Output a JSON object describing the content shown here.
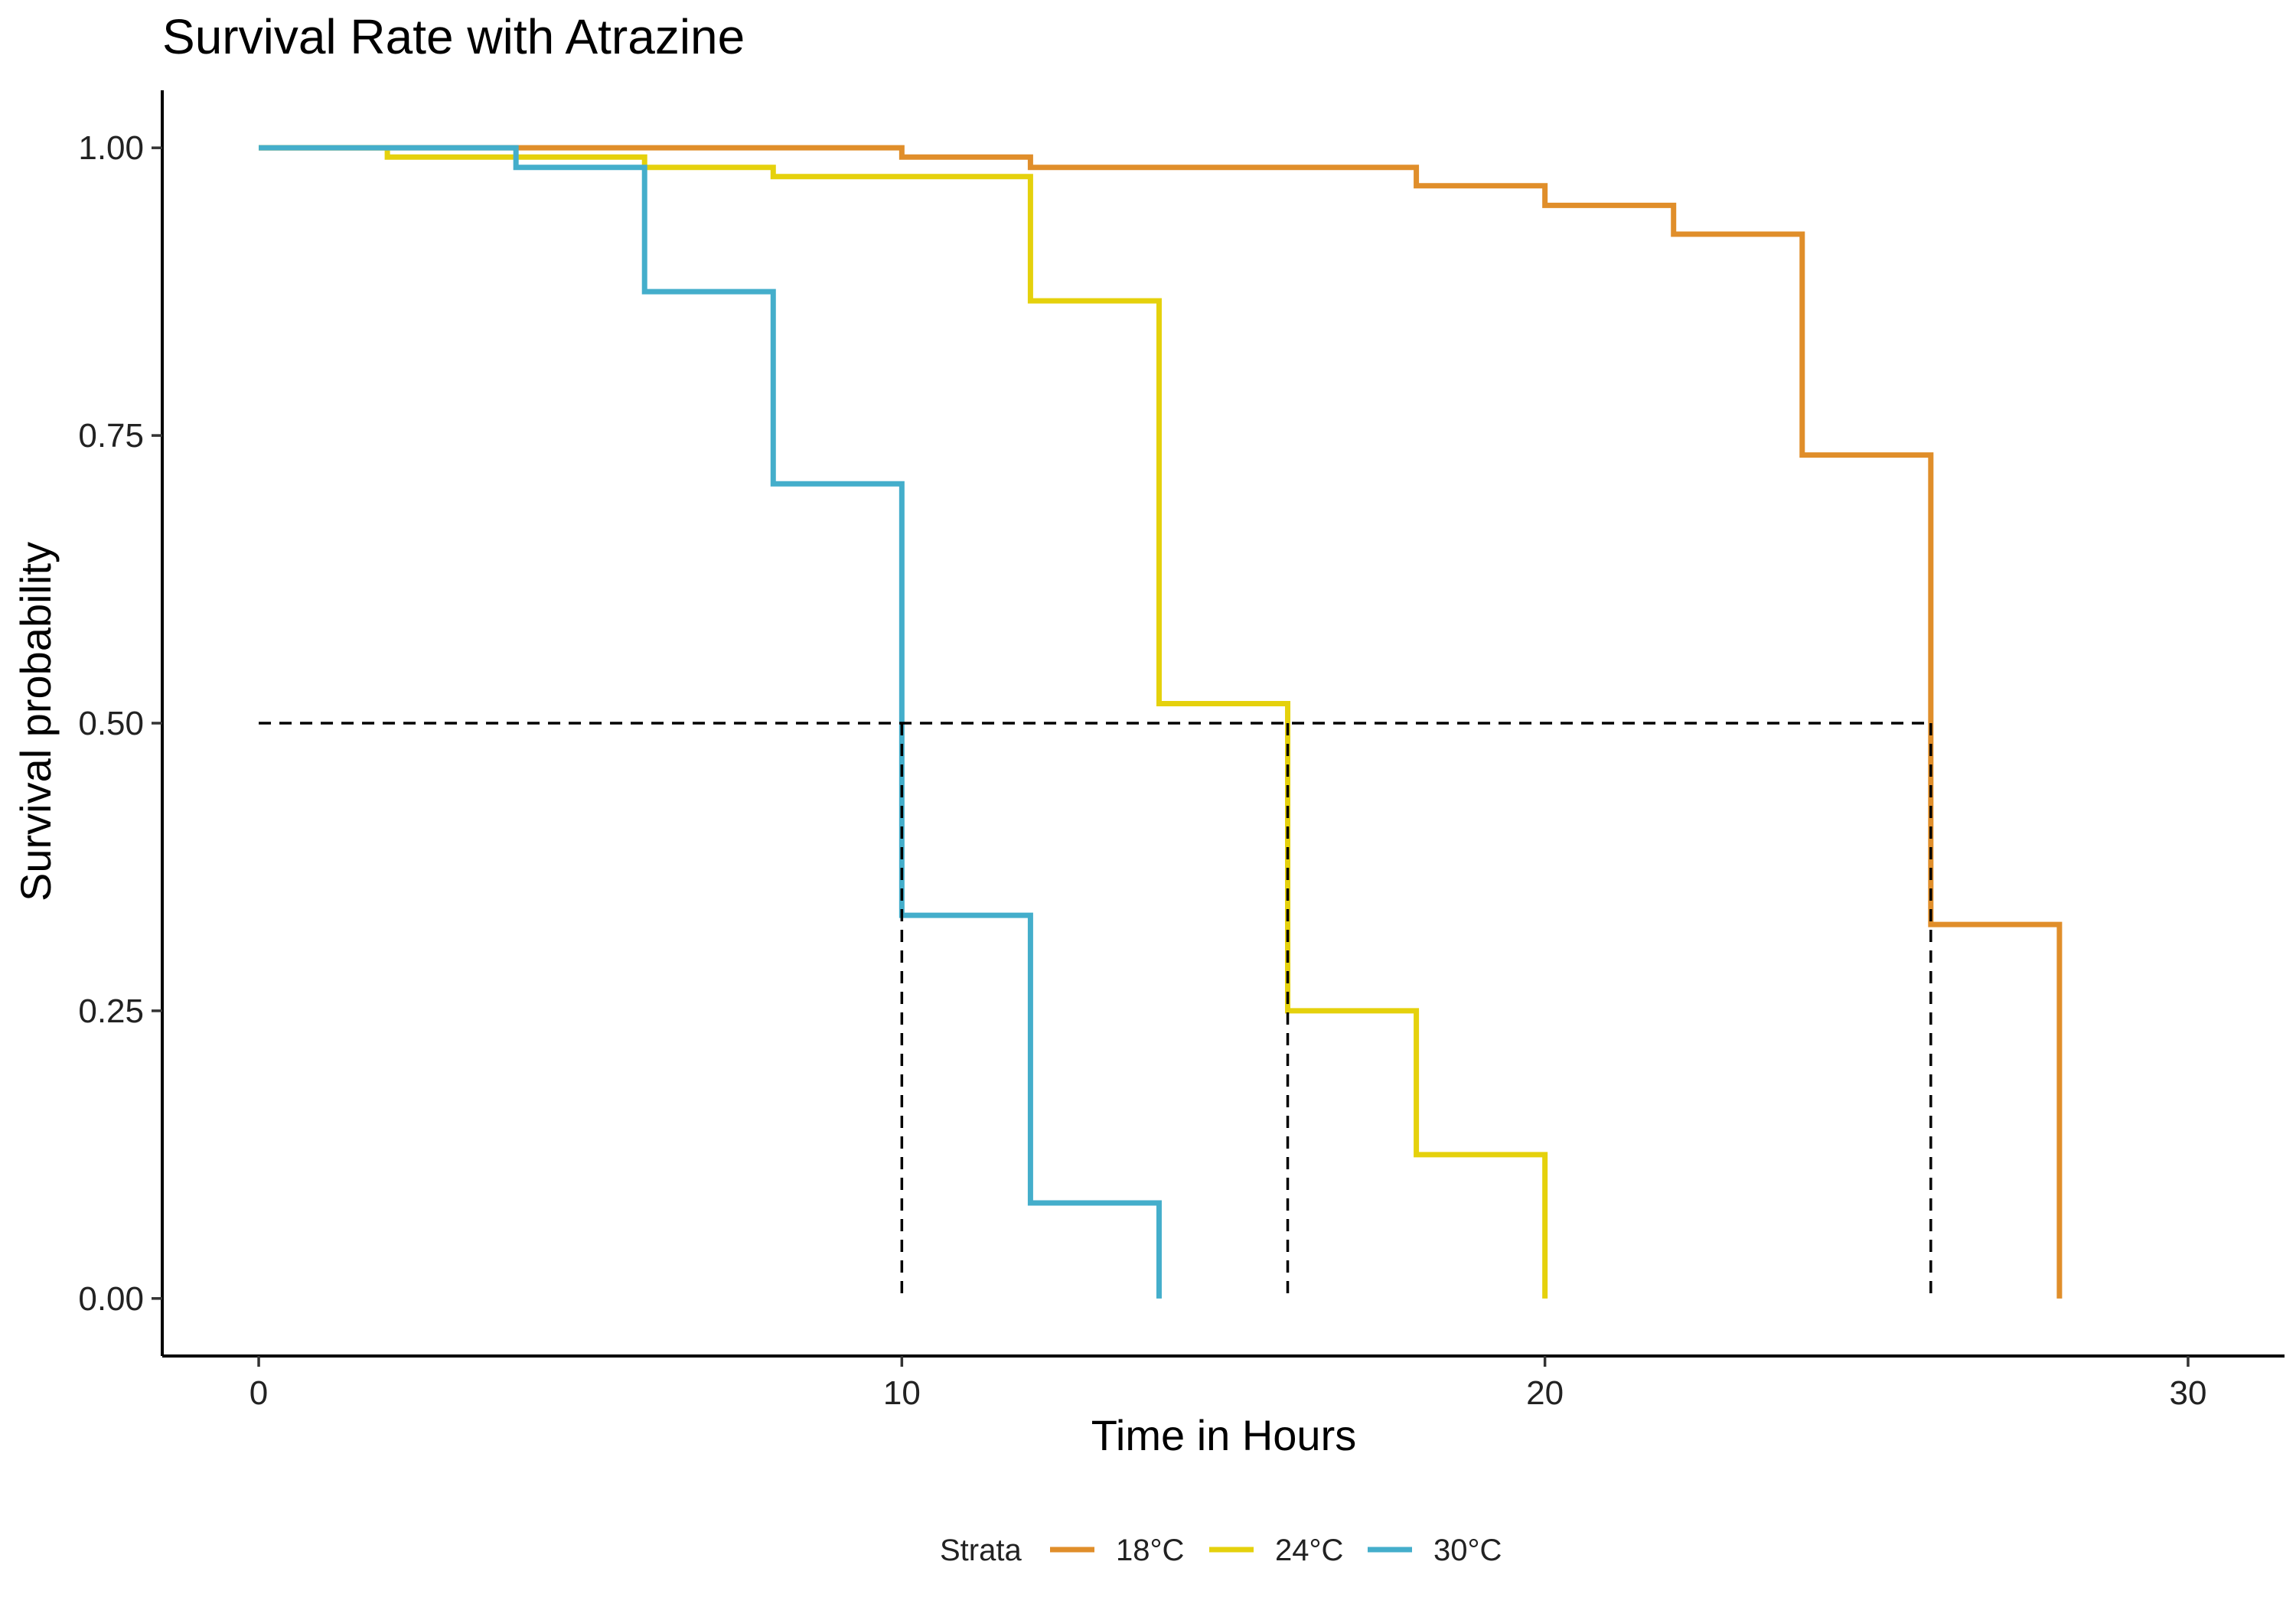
{
  "chart_data": {
    "type": "line",
    "step": true,
    "title": "Survival Rate with Atrazine",
    "xlabel": "Time in Hours",
    "ylabel": "Survival probability",
    "xlim": [
      -1.5,
      31.5
    ],
    "ylim": [
      -0.05,
      1.05
    ],
    "xticks": [
      0,
      10,
      20,
      30
    ],
    "xtick_labels": [
      "0",
      "10",
      "20",
      "30"
    ],
    "yticks": [
      0,
      0.25,
      0.5,
      0.75,
      1.0
    ],
    "ytick_labels": [
      "0.00",
      "0.25",
      "0.50",
      "0.75",
      "1.00"
    ],
    "grid": false,
    "legend": {
      "title": "Strata",
      "position": "bottom",
      "entries": [
        "18°C",
        "24°C",
        "30°C"
      ]
    },
    "series": [
      {
        "name": "18°C",
        "color": "#E08E2A",
        "x": [
          0,
          4,
          10,
          12,
          18,
          20,
          22,
          24,
          26,
          28
        ],
        "y": [
          1.0,
          1.0,
          0.992,
          0.983,
          0.967,
          0.95,
          0.925,
          0.733,
          0.325,
          0.0
        ]
      },
      {
        "name": "24°C",
        "color": "#E5D10C",
        "x": [
          0,
          2,
          6,
          8,
          12,
          14,
          16,
          18,
          20
        ],
        "y": [
          1.0,
          0.992,
          0.983,
          0.975,
          0.867,
          0.517,
          0.25,
          0.125,
          0.0
        ]
      },
      {
        "name": "30°C",
        "color": "#44AECB",
        "x": [
          0,
          4,
          6,
          8,
          10,
          12,
          14
        ],
        "y": [
          1.0,
          0.983,
          0.875,
          0.708,
          0.333,
          0.083,
          0.0
        ]
      }
    ],
    "median_lines": {
      "y": 0.5,
      "x": [
        10,
        16,
        26
      ],
      "color": "#000000"
    }
  }
}
